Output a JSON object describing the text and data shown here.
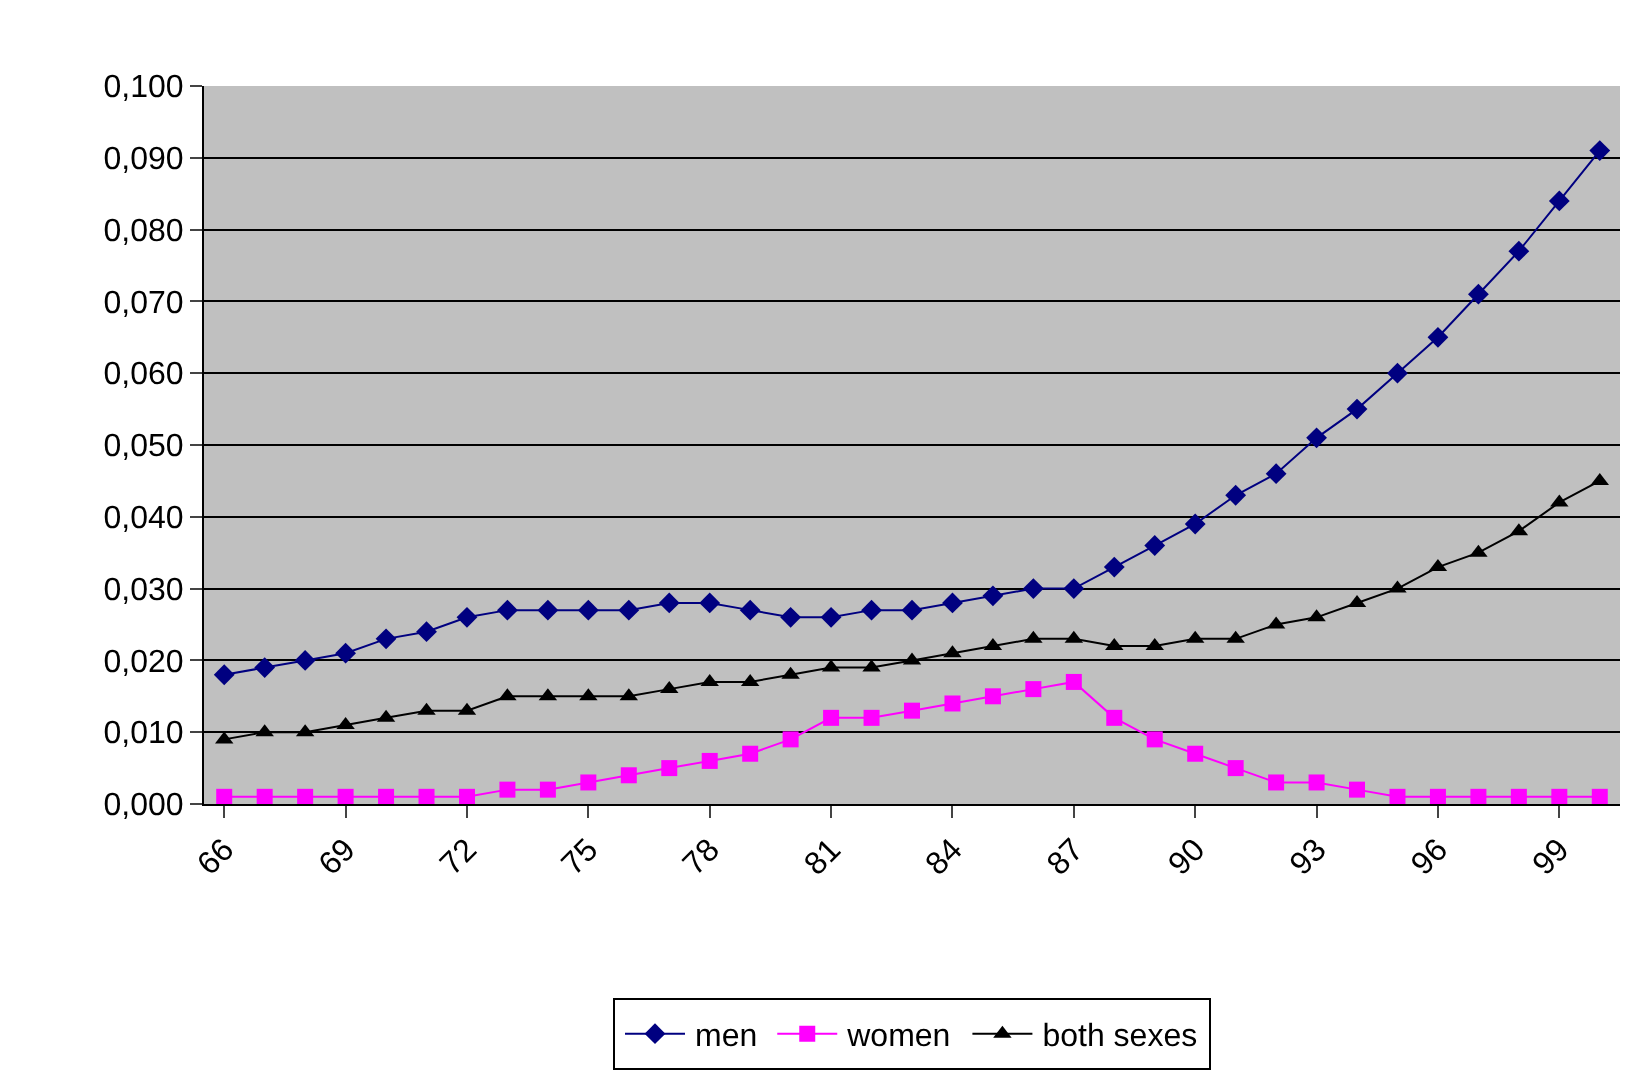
{
  "chart_data": {
    "type": "line",
    "categories": [
      "66",
      null,
      null,
      "69",
      null,
      null,
      "72",
      null,
      null,
      "75",
      null,
      null,
      "78",
      null,
      null,
      "81",
      null,
      null,
      "84",
      null,
      null,
      "87",
      null,
      null,
      "90",
      null,
      null,
      "93",
      null,
      null,
      "96",
      null,
      null,
      "99",
      null
    ],
    "series": [
      {
        "name": "men",
        "color": "#000080",
        "marker": "diamond",
        "values": [
          0.018,
          0.019,
          0.02,
          0.021,
          0.023,
          0.024,
          0.026,
          0.027,
          0.027,
          0.027,
          0.027,
          0.028,
          0.028,
          0.027,
          0.026,
          0.026,
          0.027,
          0.027,
          0.028,
          0.029,
          0.03,
          0.03,
          0.033,
          0.036,
          0.039,
          0.043,
          0.046,
          0.051,
          0.055,
          0.06,
          0.065,
          0.071,
          0.077,
          0.084,
          0.091
        ]
      },
      {
        "name": "women",
        "color": "#ff00ff",
        "marker": "square",
        "values": [
          0.001,
          0.001,
          0.001,
          0.001,
          0.001,
          0.001,
          0.001,
          0.002,
          0.002,
          0.003,
          0.004,
          0.005,
          0.006,
          0.007,
          0.009,
          0.012,
          0.012,
          0.013,
          0.014,
          0.015,
          0.016,
          0.017,
          0.012,
          0.009,
          0.007,
          0.005,
          0.003,
          0.003,
          0.002,
          0.001,
          0.001,
          0.001,
          0.001,
          0.001,
          0.001
        ]
      },
      {
        "name": "both sexes",
        "color": "#000000",
        "marker": "triangle",
        "values": [
          0.009,
          0.01,
          0.01,
          0.011,
          0.012,
          0.013,
          0.013,
          0.015,
          0.015,
          0.015,
          0.015,
          0.016,
          0.017,
          0.017,
          0.018,
          0.019,
          0.019,
          0.02,
          0.021,
          0.022,
          0.023,
          0.023,
          0.022,
          0.022,
          0.023,
          0.023,
          0.025,
          0.026,
          0.028,
          0.03,
          0.033,
          0.035,
          0.038,
          0.042,
          0.045
        ]
      }
    ],
    "ylim": [
      0,
      0.1
    ],
    "yticks": [
      {
        "value": 0,
        "label": "0,000"
      },
      {
        "value": 0.01,
        "label": "0,010"
      },
      {
        "value": 0.02,
        "label": "0,020"
      },
      {
        "value": 0.03,
        "label": "0,030"
      },
      {
        "value": 0.04,
        "label": "0,040"
      },
      {
        "value": 0.05,
        "label": "0,050"
      },
      {
        "value": 0.06,
        "label": "0,060"
      },
      {
        "value": 0.07,
        "label": "0,070"
      },
      {
        "value": 0.08,
        "label": "0,080"
      },
      {
        "value": 0.09,
        "label": "0,090"
      },
      {
        "value": 0.1,
        "label": "0,100"
      }
    ],
    "grid": "y",
    "legend": "bottom",
    "line_style": "solid"
  }
}
